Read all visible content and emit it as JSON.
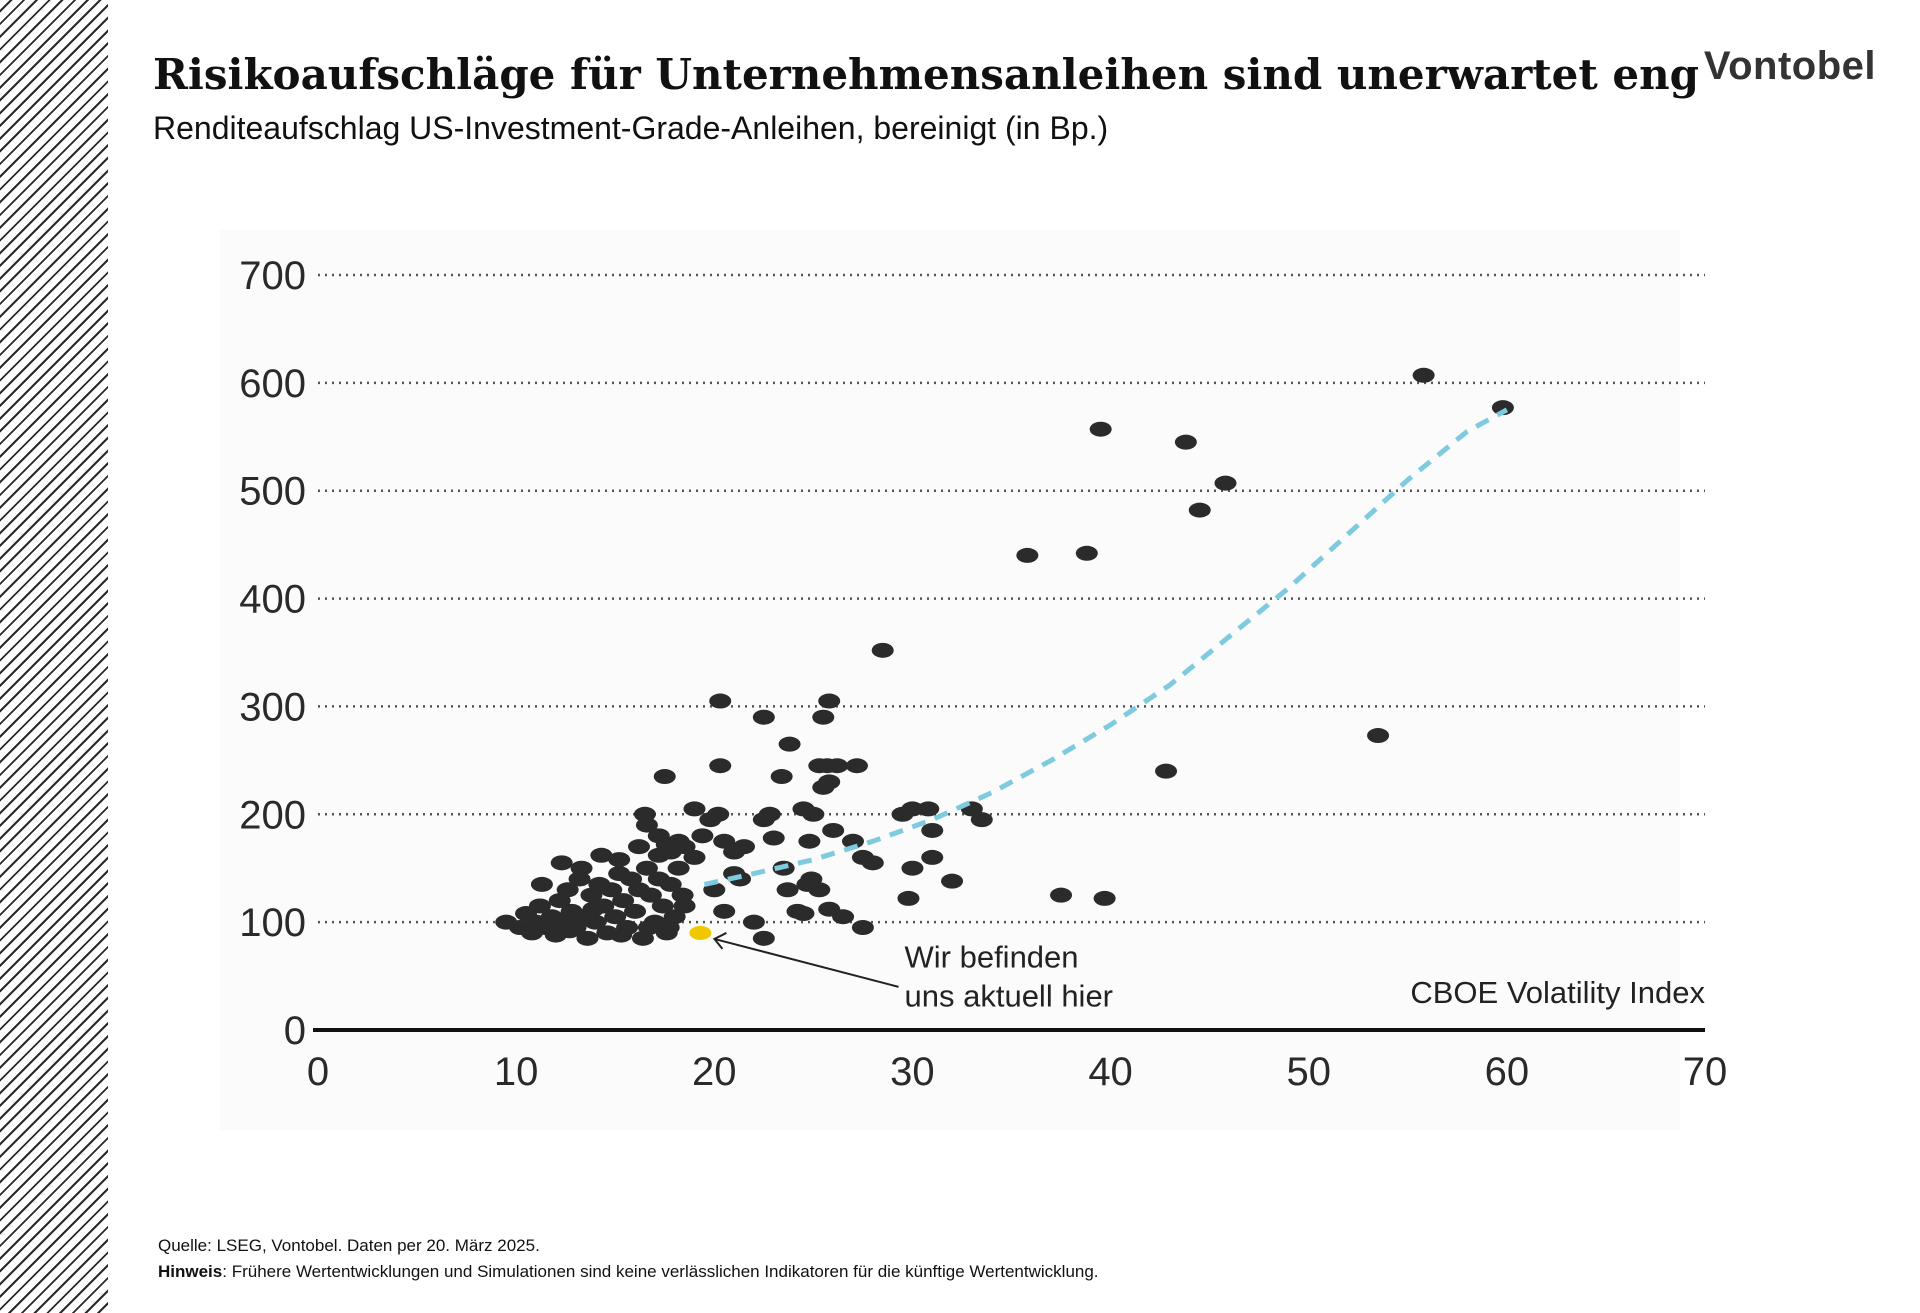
{
  "header": {
    "title": "Risikoaufschläge für Unternehmensanleihen sind unerwartet eng",
    "subtitle": "Renditeaufschlag US-Investment-Grade-Anleihen, bereinigt (in Bp.)",
    "logo": "Vontobel"
  },
  "footer": {
    "source": "Quelle: LSEG, Vontobel. Daten per 20. März 2025.",
    "note_label": "Hinweis",
    "note_text": ": Frühere Wertentwicklungen und Simulationen sind keine verlässlichen Indikatoren für die künftige Wertentwicklung."
  },
  "chart_data": {
    "type": "scatter",
    "xlabel": "CBOE Volatility Index",
    "ylabel": "",
    "xlim": [
      0,
      70
    ],
    "ylim": [
      0,
      700
    ],
    "xticks": [
      0,
      10,
      20,
      30,
      40,
      50,
      60,
      70
    ],
    "yticks": [
      0,
      100,
      200,
      300,
      400,
      500,
      600,
      700
    ],
    "grid": "horizontal dotted",
    "colors": {
      "points": "#2b2b2b",
      "current": "#f0c800",
      "trend": "#7ecbe0",
      "axis": "#111111",
      "grid": "#555555",
      "plot_bg": "#fbfbfb"
    },
    "annotation": {
      "line1": "Wir befinden",
      "line2": "uns aktuell hier"
    },
    "current_point": {
      "x": 19.3,
      "y": 90
    },
    "trendline": [
      [
        19.5,
        135
      ],
      [
        22,
        145
      ],
      [
        25,
        158
      ],
      [
        28,
        175
      ],
      [
        31,
        195
      ],
      [
        34,
        220
      ],
      [
        37,
        250
      ],
      [
        40,
        283
      ],
      [
        43,
        320
      ],
      [
        46,
        365
      ],
      [
        49,
        410
      ],
      [
        52,
        460
      ],
      [
        55,
        510
      ],
      [
        58,
        555
      ],
      [
        60,
        575
      ]
    ],
    "points": [
      [
        9.5,
        100
      ],
      [
        10.2,
        95
      ],
      [
        10.5,
        108
      ],
      [
        10.8,
        90
      ],
      [
        11,
        100
      ],
      [
        11.2,
        115
      ],
      [
        11.5,
        95
      ],
      [
        11.8,
        105
      ],
      [
        12,
        88
      ],
      [
        12.2,
        120
      ],
      [
        12.4,
        100
      ],
      [
        12.6,
        130
      ],
      [
        12.8,
        110
      ],
      [
        13,
        95
      ],
      [
        13.2,
        140
      ],
      [
        13.4,
        105
      ],
      [
        13.6,
        85
      ],
      [
        13.8,
        125
      ],
      [
        14,
        100
      ],
      [
        14.2,
        135
      ],
      [
        14.4,
        115
      ],
      [
        14.6,
        90
      ],
      [
        14.8,
        130
      ],
      [
        15,
        105
      ],
      [
        15.2,
        145
      ],
      [
        15.4,
        120
      ],
      [
        15.6,
        95
      ],
      [
        15.8,
        140
      ],
      [
        16,
        110
      ],
      [
        16.2,
        130
      ],
      [
        16.4,
        85
      ],
      [
        16.6,
        150
      ],
      [
        16.8,
        125
      ],
      [
        17,
        100
      ],
      [
        17.2,
        140
      ],
      [
        17.4,
        115
      ],
      [
        17.6,
        90
      ],
      [
        17.8,
        135
      ],
      [
        18,
        105
      ],
      [
        18.2,
        150
      ],
      [
        18.4,
        125
      ],
      [
        12.3,
        155
      ],
      [
        13.3,
        150
      ],
      [
        14.3,
        162
      ],
      [
        15.2,
        158
      ],
      [
        16.2,
        170
      ],
      [
        17.2,
        162
      ],
      [
        18.2,
        175
      ],
      [
        19,
        160
      ],
      [
        11.3,
        135
      ],
      [
        12.7,
        92
      ],
      [
        13.9,
        112
      ],
      [
        15.3,
        88
      ],
      [
        16.7,
        95
      ],
      [
        17.7,
        95
      ],
      [
        18.5,
        115
      ],
      [
        16.5,
        200
      ],
      [
        16.6,
        190
      ],
      [
        17.2,
        180
      ],
      [
        17.6,
        172
      ],
      [
        17.8,
        165
      ],
      [
        17.5,
        235
      ],
      [
        18.5,
        170
      ],
      [
        19,
        205
      ],
      [
        19.4,
        180
      ],
      [
        19.8,
        195
      ],
      [
        20.2,
        200
      ],
      [
        20.5,
        175
      ],
      [
        21,
        165
      ],
      [
        21.5,
        170
      ],
      [
        20.3,
        305
      ],
      [
        20.3,
        245
      ],
      [
        22.5,
        195
      ],
      [
        22.8,
        200
      ],
      [
        23,
        178
      ],
      [
        22.5,
        290
      ],
      [
        23.4,
        235
      ],
      [
        23.8,
        265
      ],
      [
        24.5,
        205
      ],
      [
        25,
        200
      ],
      [
        24.8,
        175
      ],
      [
        25.5,
        290
      ],
      [
        25.8,
        305
      ],
      [
        25.3,
        245
      ],
      [
        25.7,
        245
      ],
      [
        26.2,
        245
      ],
      [
        25.5,
        225
      ],
      [
        25.8,
        230
      ],
      [
        27.2,
        245
      ],
      [
        26,
        185
      ],
      [
        27,
        175
      ],
      [
        27.5,
        160
      ],
      [
        28,
        155
      ],
      [
        28.5,
        352
      ],
      [
        29.5,
        200
      ],
      [
        30,
        205
      ],
      [
        30.8,
        205
      ],
      [
        31,
        185
      ],
      [
        32,
        138
      ],
      [
        31,
        160
      ],
      [
        30,
        150
      ],
      [
        29.8,
        122
      ],
      [
        33,
        205
      ],
      [
        33.5,
        195
      ],
      [
        20,
        130
      ],
      [
        20.5,
        110
      ],
      [
        21,
        145
      ],
      [
        21.3,
        140
      ],
      [
        22,
        100
      ],
      [
        22.5,
        85
      ],
      [
        23.5,
        150
      ],
      [
        23.7,
        130
      ],
      [
        24.2,
        110
      ],
      [
        24.7,
        135
      ],
      [
        24.9,
        140
      ],
      [
        25.3,
        130
      ],
      [
        25.8,
        112
      ],
      [
        26.5,
        105
      ],
      [
        27.5,
        95
      ],
      [
        24.5,
        108
      ],
      [
        35.8,
        440
      ],
      [
        38.8,
        442
      ],
      [
        39.5,
        557
      ],
      [
        43.8,
        545
      ],
      [
        44.5,
        482
      ],
      [
        45.8,
        507
      ],
      [
        42.8,
        240
      ],
      [
        37.5,
        125
      ],
      [
        39.7,
        122
      ],
      [
        53.5,
        273
      ],
      [
        55.8,
        607
      ],
      [
        59.8,
        577
      ]
    ]
  }
}
